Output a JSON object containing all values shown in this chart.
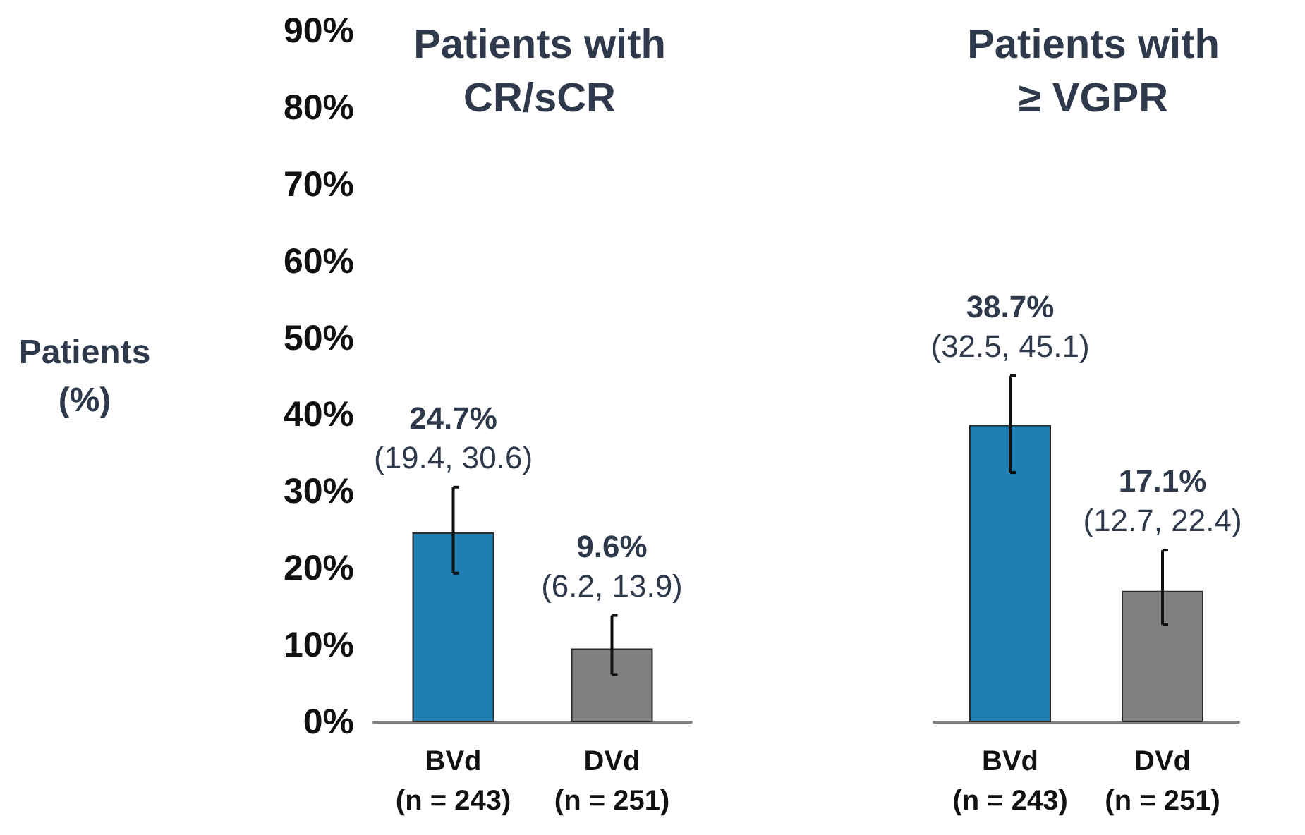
{
  "chart_data": [
    {
      "type": "bar",
      "title": "Patients with\nCR/sCR",
      "ylabel": "Patients\n(%)",
      "categories": [
        "BVd\n(n = 243)",
        "DVd\n(n = 251)"
      ],
      "values": [
        24.7,
        9.6
      ],
      "colors": [
        "#1f7fb3",
        "#808080"
      ],
      "errors": [
        [
          19.4,
          30.6
        ],
        [
          6.2,
          13.9
        ]
      ],
      "value_labels": [
        "24.7%\n(19.4, 30.6)",
        "9.6%\n(6.2, 13.9)"
      ],
      "ylim": [
        0,
        90
      ],
      "yticks": [
        {
          "value": 0,
          "label": "0%"
        },
        {
          "value": 10,
          "label": "10%"
        },
        {
          "value": 20,
          "label": "20%"
        },
        {
          "value": 30,
          "label": "30%"
        },
        {
          "value": 40,
          "label": "40%"
        },
        {
          "value": 50,
          "label": "50%"
        },
        {
          "value": 60,
          "label": "60%"
        },
        {
          "value": 70,
          "label": "70%"
        },
        {
          "value": 80,
          "label": "80%"
        },
        {
          "value": 90,
          "label": "90%"
        }
      ],
      "grid": false
    },
    {
      "type": "bar",
      "title": "Patients with\n≥ VGPR",
      "categories": [
        "BVd\n(n = 243)",
        "DVd\n(n = 251)"
      ],
      "values": [
        38.7,
        17.1
      ],
      "colors": [
        "#1f7fb3",
        "#808080"
      ],
      "errors": [
        [
          32.5,
          45.1
        ],
        [
          12.7,
          22.4
        ]
      ],
      "value_labels": [
        "38.7%\n(32.5, 45.1)",
        "17.1%\n(12.7, 22.4)"
      ],
      "ylim": [
        0,
        90
      ],
      "tick_labels": "x",
      "grid": false
    }
  ]
}
